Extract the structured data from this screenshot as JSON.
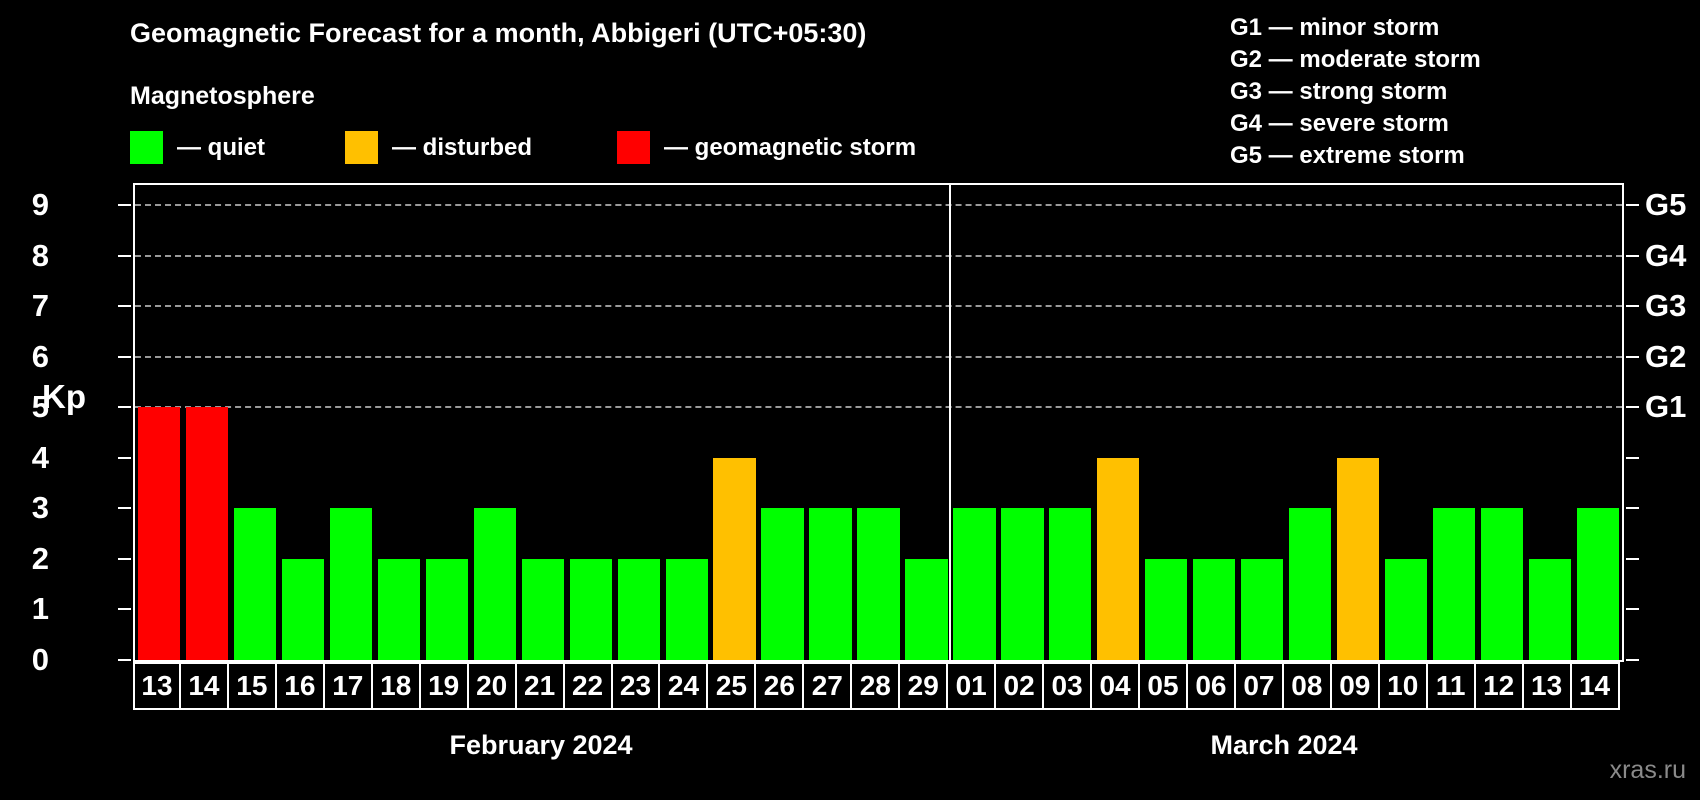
{
  "title": "Geomagnetic Forecast for a month, Abbigeri (UTC+05:30)",
  "subtitle": "Magnetosphere",
  "legend": {
    "items": [
      {
        "key": "quiet",
        "label": "— quiet",
        "color": "#00ff00"
      },
      {
        "key": "disturbed",
        "label": "— disturbed",
        "color": "#ffc000"
      },
      {
        "key": "storm",
        "label": "— geomagnetic storm",
        "color": "#ff0000"
      }
    ]
  },
  "storm_scale_legend": [
    "G1 — minor storm",
    "G2 — moderate storm",
    "G3 — strong storm",
    "G4 — severe storm",
    "G5 — extreme storm"
  ],
  "watermark": "xras.ru",
  "chart_data": {
    "type": "bar",
    "ylabel": "Kp",
    "ylim": [
      0,
      9.4
    ],
    "yticks": [
      0,
      1,
      2,
      3,
      4,
      5,
      6,
      7,
      8,
      9
    ],
    "gridlines_at": [
      5,
      6,
      7,
      8,
      9
    ],
    "grid": true,
    "right_axis_labels": [
      {
        "label": "G1",
        "value": 5
      },
      {
        "label": "G2",
        "value": 6
      },
      {
        "label": "G3",
        "value": 7
      },
      {
        "label": "G4",
        "value": 8
      },
      {
        "label": "G5",
        "value": 9
      }
    ],
    "colors": {
      "quiet": "#00ff00",
      "disturbed": "#ffc000",
      "storm": "#ff0000"
    },
    "groups": [
      {
        "month": "February 2024",
        "days": [
          {
            "day": "13",
            "kp": 5,
            "status": "storm"
          },
          {
            "day": "14",
            "kp": 5,
            "status": "storm"
          },
          {
            "day": "15",
            "kp": 3,
            "status": "quiet"
          },
          {
            "day": "16",
            "kp": 2,
            "status": "quiet"
          },
          {
            "day": "17",
            "kp": 3,
            "status": "quiet"
          },
          {
            "day": "18",
            "kp": 2,
            "status": "quiet"
          },
          {
            "day": "19",
            "kp": 2,
            "status": "quiet"
          },
          {
            "day": "20",
            "kp": 3,
            "status": "quiet"
          },
          {
            "day": "21",
            "kp": 2,
            "status": "quiet"
          },
          {
            "day": "22",
            "kp": 2,
            "status": "quiet"
          },
          {
            "day": "23",
            "kp": 2,
            "status": "quiet"
          },
          {
            "day": "24",
            "kp": 2,
            "status": "quiet"
          },
          {
            "day": "25",
            "kp": 4,
            "status": "disturbed"
          },
          {
            "day": "26",
            "kp": 3,
            "status": "quiet"
          },
          {
            "day": "27",
            "kp": 3,
            "status": "quiet"
          },
          {
            "day": "28",
            "kp": 3,
            "status": "quiet"
          },
          {
            "day": "29",
            "kp": 2,
            "status": "quiet"
          }
        ]
      },
      {
        "month": "March 2024",
        "days": [
          {
            "day": "01",
            "kp": 3,
            "status": "quiet"
          },
          {
            "day": "02",
            "kp": 3,
            "status": "quiet"
          },
          {
            "day": "03",
            "kp": 3,
            "status": "quiet"
          },
          {
            "day": "04",
            "kp": 4,
            "status": "disturbed"
          },
          {
            "day": "05",
            "kp": 2,
            "status": "quiet"
          },
          {
            "day": "06",
            "kp": 2,
            "status": "quiet"
          },
          {
            "day": "07",
            "kp": 2,
            "status": "quiet"
          },
          {
            "day": "08",
            "kp": 3,
            "status": "quiet"
          },
          {
            "day": "09",
            "kp": 4,
            "status": "disturbed"
          },
          {
            "day": "10",
            "kp": 2,
            "status": "quiet"
          },
          {
            "day": "11",
            "kp": 3,
            "status": "quiet"
          },
          {
            "day": "12",
            "kp": 3,
            "status": "quiet"
          },
          {
            "day": "13",
            "kp": 2,
            "status": "quiet"
          },
          {
            "day": "14",
            "kp": 3,
            "status": "quiet"
          }
        ]
      }
    ]
  }
}
